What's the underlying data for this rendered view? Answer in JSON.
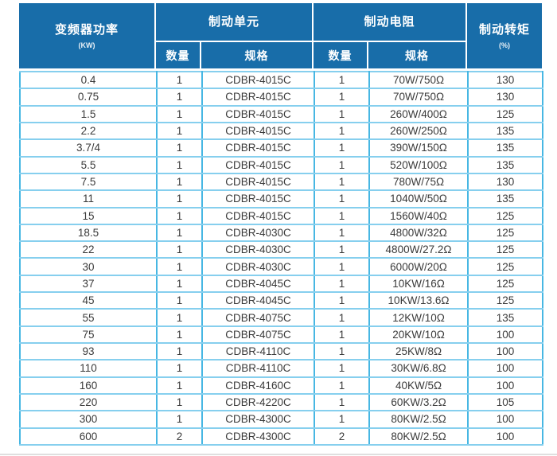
{
  "table": {
    "header": {
      "power": {
        "title": "变频器功率",
        "unit": "(KW)"
      },
      "braking_unit_group": {
        "title": "制动单元",
        "qty_label": "数量",
        "spec_label": "规格"
      },
      "braking_resistor_group": {
        "title": "制动电阻",
        "qty_label": "数量",
        "spec_label": "规格"
      },
      "torque": {
        "title": "制动转矩",
        "unit": "(%)"
      }
    },
    "rows": [
      [
        "0.4",
        "1",
        "CDBR-4015C",
        "1",
        "70W/750Ω",
        "130"
      ],
      [
        "0.75",
        "1",
        "CDBR-4015C",
        "1",
        "70W/750Ω",
        "130"
      ],
      [
        "1.5",
        "1",
        "CDBR-4015C",
        "1",
        "260W/400Ω",
        "125"
      ],
      [
        "2.2",
        "1",
        "CDBR-4015C",
        "1",
        "260W/250Ω",
        "135"
      ],
      [
        "3.7/4",
        "1",
        "CDBR-4015C",
        "1",
        "390W/150Ω",
        "135"
      ],
      [
        "5.5",
        "1",
        "CDBR-4015C",
        "1",
        "520W/100Ω",
        "135"
      ],
      [
        "7.5",
        "1",
        "CDBR-4015C",
        "1",
        "780W/75Ω",
        "130"
      ],
      [
        "11",
        "1",
        "CDBR-4015C",
        "1",
        "1040W/50Ω",
        "135"
      ],
      [
        "15",
        "1",
        "CDBR-4015C",
        "1",
        "1560W/40Ω",
        "125"
      ],
      [
        "18.5",
        "1",
        "CDBR-4030C",
        "1",
        "4800W/32Ω",
        "125"
      ],
      [
        "22",
        "1",
        "CDBR-4030C",
        "1",
        "4800W/27.2Ω",
        "125"
      ],
      [
        "30",
        "1",
        "CDBR-4030C",
        "1",
        "6000W/20Ω",
        "125"
      ],
      [
        "37",
        "1",
        "CDBR-4045C",
        "1",
        "10KW/16Ω",
        "125"
      ],
      [
        "45",
        "1",
        "CDBR-4045C",
        "1",
        "10KW/13.6Ω",
        "125"
      ],
      [
        "55",
        "1",
        "CDBR-4075C",
        "1",
        "12KW/10Ω",
        "135"
      ],
      [
        "75",
        "1",
        "CDBR-4075C",
        "1",
        "20KW/10Ω",
        "100"
      ],
      [
        "93",
        "1",
        "CDBR-4110C",
        "1",
        "25KW/8Ω",
        "100"
      ],
      [
        "110",
        "1",
        "CDBR-4110C",
        "1",
        "30KW/6.8Ω",
        "100"
      ],
      [
        "160",
        "1",
        "CDBR-4160C",
        "1",
        "40KW/5Ω",
        "100"
      ],
      [
        "220",
        "1",
        "CDBR-4220C",
        "1",
        "60KW/3.2Ω",
        "105"
      ],
      [
        "300",
        "1",
        "CDBR-4300C",
        "1",
        "80KW/2.5Ω",
        "100"
      ],
      [
        "600",
        "2",
        "CDBR-4300C",
        "2",
        "80KW/2.5Ω",
        "100"
      ]
    ]
  },
  "colors": {
    "header_bg": "#186da9",
    "header_text": "#ffffff",
    "grid_vertical": "#47b7e3",
    "grid_horizontal": "#86cfee",
    "body_text": "#3a3a3a"
  }
}
